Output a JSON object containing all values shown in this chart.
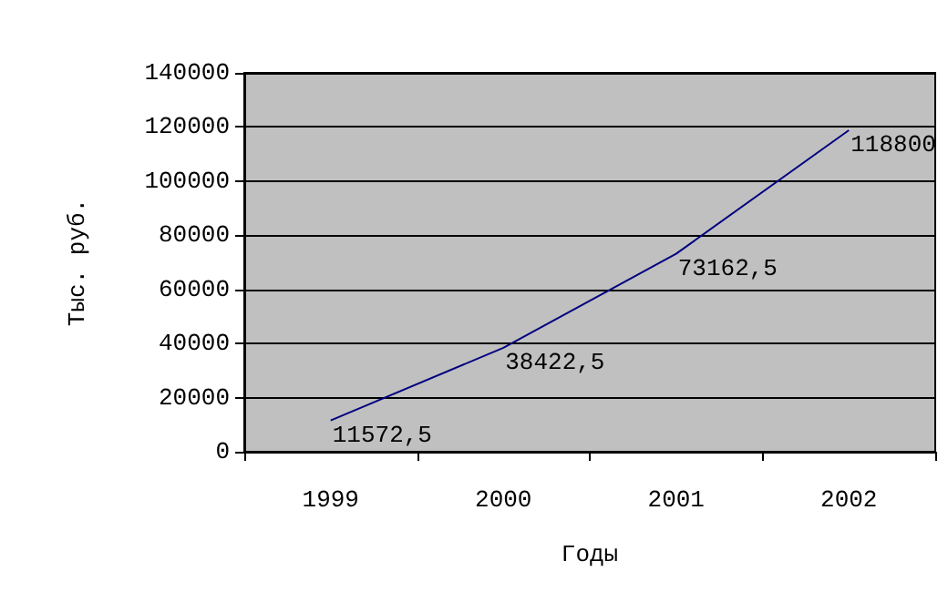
{
  "chart_data": {
    "type": "line",
    "xlabel": "Годы",
    "ylabel": "Тыс. руб.",
    "categories": [
      "1999",
      "2000",
      "2001",
      "2002"
    ],
    "series": [
      {
        "color": "#000080",
        "values": [
          11572.5,
          38422.5,
          73162.5,
          118800
        ],
        "value_labels": [
          "11572,5",
          "38422,5",
          "73162,5",
          "118800"
        ]
      }
    ],
    "ylim": [
      0,
      140000
    ],
    "yticks": [
      0,
      20000,
      40000,
      60000,
      80000,
      100000,
      120000,
      140000
    ],
    "grid": "y",
    "marker": "none",
    "line_style": "solid"
  }
}
